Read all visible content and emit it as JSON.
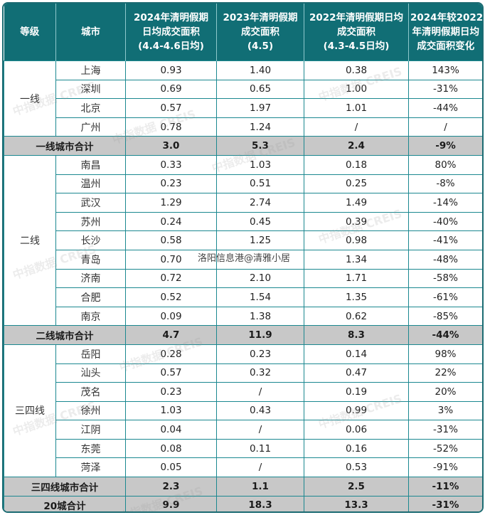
{
  "table": {
    "headers": [
      {
        "lines": [
          "等级"
        ]
      },
      {
        "lines": [
          "城市"
        ]
      },
      {
        "lines": [
          "2024年清明假期",
          "日均成交面积",
          "(4.4-4.6日均)"
        ]
      },
      {
        "lines": [
          "2023年清明假期",
          "成交面积",
          "(4.5)"
        ]
      },
      {
        "lines": [
          "2022年清明假期日均",
          "成交面积",
          "(4.3-4.5日均)"
        ]
      },
      {
        "lines": [
          "2024年较2022",
          "年清明假期日均",
          "成交面积变化"
        ]
      }
    ],
    "groups": [
      {
        "tier": "一线",
        "rows": [
          {
            "city": "上海",
            "v2024": "0.93",
            "v2023": "1.40",
            "v2022": "0.38",
            "change": "143%"
          },
          {
            "city": "深圳",
            "v2024": "0.69",
            "v2023": "0.65",
            "v2022": "1.00",
            "change": "-31%"
          },
          {
            "city": "北京",
            "v2024": "0.57",
            "v2023": "1.97",
            "v2022": "1.01",
            "change": "-44%"
          },
          {
            "city": "广州",
            "v2024": "0.78",
            "v2023": "1.24",
            "v2022": "/",
            "change": "/"
          }
        ],
        "subtotal": {
          "label": "一线城市合计",
          "v2024": "3.0",
          "v2023": "5.3",
          "v2022": "2.4",
          "change": "-9%"
        }
      },
      {
        "tier": "二线",
        "rows": [
          {
            "city": "南昌",
            "v2024": "0.33",
            "v2023": "1.03",
            "v2022": "0.18",
            "change": "80%"
          },
          {
            "city": "温州",
            "v2024": "0.23",
            "v2023": "0.51",
            "v2022": "0.25",
            "change": "-8%"
          },
          {
            "city": "武汉",
            "v2024": "1.29",
            "v2023": "2.74",
            "v2022": "1.49",
            "change": "-14%"
          },
          {
            "city": "苏州",
            "v2024": "0.24",
            "v2023": "0.45",
            "v2022": "0.39",
            "change": "-40%"
          },
          {
            "city": "长沙",
            "v2024": "0.58",
            "v2023": "1.25",
            "v2022": "0.98",
            "change": "-41%"
          },
          {
            "city": "青岛",
            "v2024": "0.70",
            "v2023": "",
            "v2022": "1.34",
            "change": "-48%"
          },
          {
            "city": "济南",
            "v2024": "0.72",
            "v2023": "2.10",
            "v2022": "1.71",
            "change": "-58%"
          },
          {
            "city": "合肥",
            "v2024": "0.52",
            "v2023": "1.54",
            "v2022": "1.35",
            "change": "-61%"
          },
          {
            "city": "南京",
            "v2024": "0.09",
            "v2023": "1.38",
            "v2022": "0.62",
            "change": "-85%"
          }
        ],
        "subtotal": {
          "label": "二线城市合计",
          "v2024": "4.7",
          "v2023": "11.9",
          "v2022": "8.3",
          "change": "-44%"
        }
      },
      {
        "tier": "三四线",
        "rows": [
          {
            "city": "岳阳",
            "v2024": "0.28",
            "v2023": "0.23",
            "v2022": "0.14",
            "change": "98%"
          },
          {
            "city": "汕头",
            "v2024": "0.57",
            "v2023": "0.32",
            "v2022": "0.47",
            "change": "22%"
          },
          {
            "city": "茂名",
            "v2024": "0.23",
            "v2023": "/",
            "v2022": "0.19",
            "change": "20%"
          },
          {
            "city": "徐州",
            "v2024": "1.03",
            "v2023": "0.43",
            "v2022": "0.99",
            "change": "3%"
          },
          {
            "city": "江阴",
            "v2024": "0.04",
            "v2023": "/",
            "v2022": "0.06",
            "change": "-31%"
          },
          {
            "city": "东莞",
            "v2024": "0.08",
            "v2023": "0.11",
            "v2022": "0.16",
            "change": "-52%"
          },
          {
            "city": "菏泽",
            "v2024": "0.05",
            "v2023": "/",
            "v2022": "0.53",
            "change": "-91%"
          }
        ],
        "subtotal": {
          "label": "三四线城市合计",
          "v2024": "2.3",
          "v2023": "1.1",
          "v2022": "2.5",
          "change": "-11%"
        }
      }
    ],
    "total": {
      "label": "20城合计",
      "v2024": "9.9",
      "v2023": "18.3",
      "v2022": "13.3",
      "change": "-31%"
    }
  },
  "overlay_caption": "洛阳信息港@清雅小居",
  "watermark_text": "中指数据 CREIS",
  "colors": {
    "header_bg": "#116e75",
    "border": "#1b8890",
    "subtotal_bg": "#c8c8c8"
  }
}
